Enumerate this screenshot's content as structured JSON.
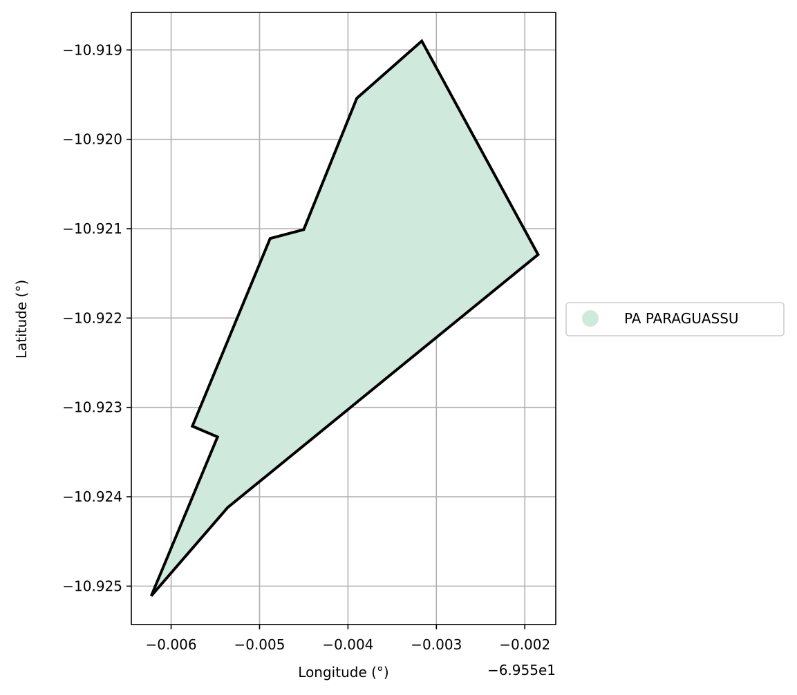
{
  "chart_data": {
    "type": "map",
    "xlabel": "Longitude (°)",
    "ylabel": "Latitude (°)",
    "x_offset_label": "−6.955e1",
    "x_offset": -69.55,
    "xlim": [
      -0.00645,
      -0.00165
    ],
    "ylim": [
      -10.92543,
      -10.91858
    ],
    "x_ticks": [
      -0.006,
      -0.005,
      -0.004,
      -0.003,
      -0.002
    ],
    "x_tick_labels": [
      "−0.006",
      "−0.005",
      "−0.004",
      "−0.003",
      "−0.002"
    ],
    "y_ticks": [
      -10.919,
      -10.92,
      -10.921,
      -10.922,
      -10.923,
      -10.924,
      -10.925
    ],
    "y_tick_labels": [
      "−10.919",
      "−10.920",
      "−10.921",
      "−10.922",
      "−10.923",
      "−10.924",
      "−10.925"
    ],
    "grid": true,
    "legend_position": "right",
    "legend": [
      {
        "label": "PA PARAGUASSU",
        "color": "#cfeadd"
      }
    ],
    "fill_color": "#cfeadd",
    "edge_color": "#000000",
    "polygon": [
      [
        -0.003165,
        -10.9189
      ],
      [
        -0.00185,
        -10.92129
      ],
      [
        -0.00536,
        -10.92412
      ],
      [
        -0.006225,
        -10.92511
      ],
      [
        -0.005475,
        -10.92333
      ],
      [
        -0.00576,
        -10.92321
      ],
      [
        -0.00488,
        -10.92111
      ],
      [
        -0.0045,
        -10.92101
      ],
      [
        -0.0039,
        -10.91954
      ],
      [
        -0.003165,
        -10.9189
      ]
    ]
  }
}
